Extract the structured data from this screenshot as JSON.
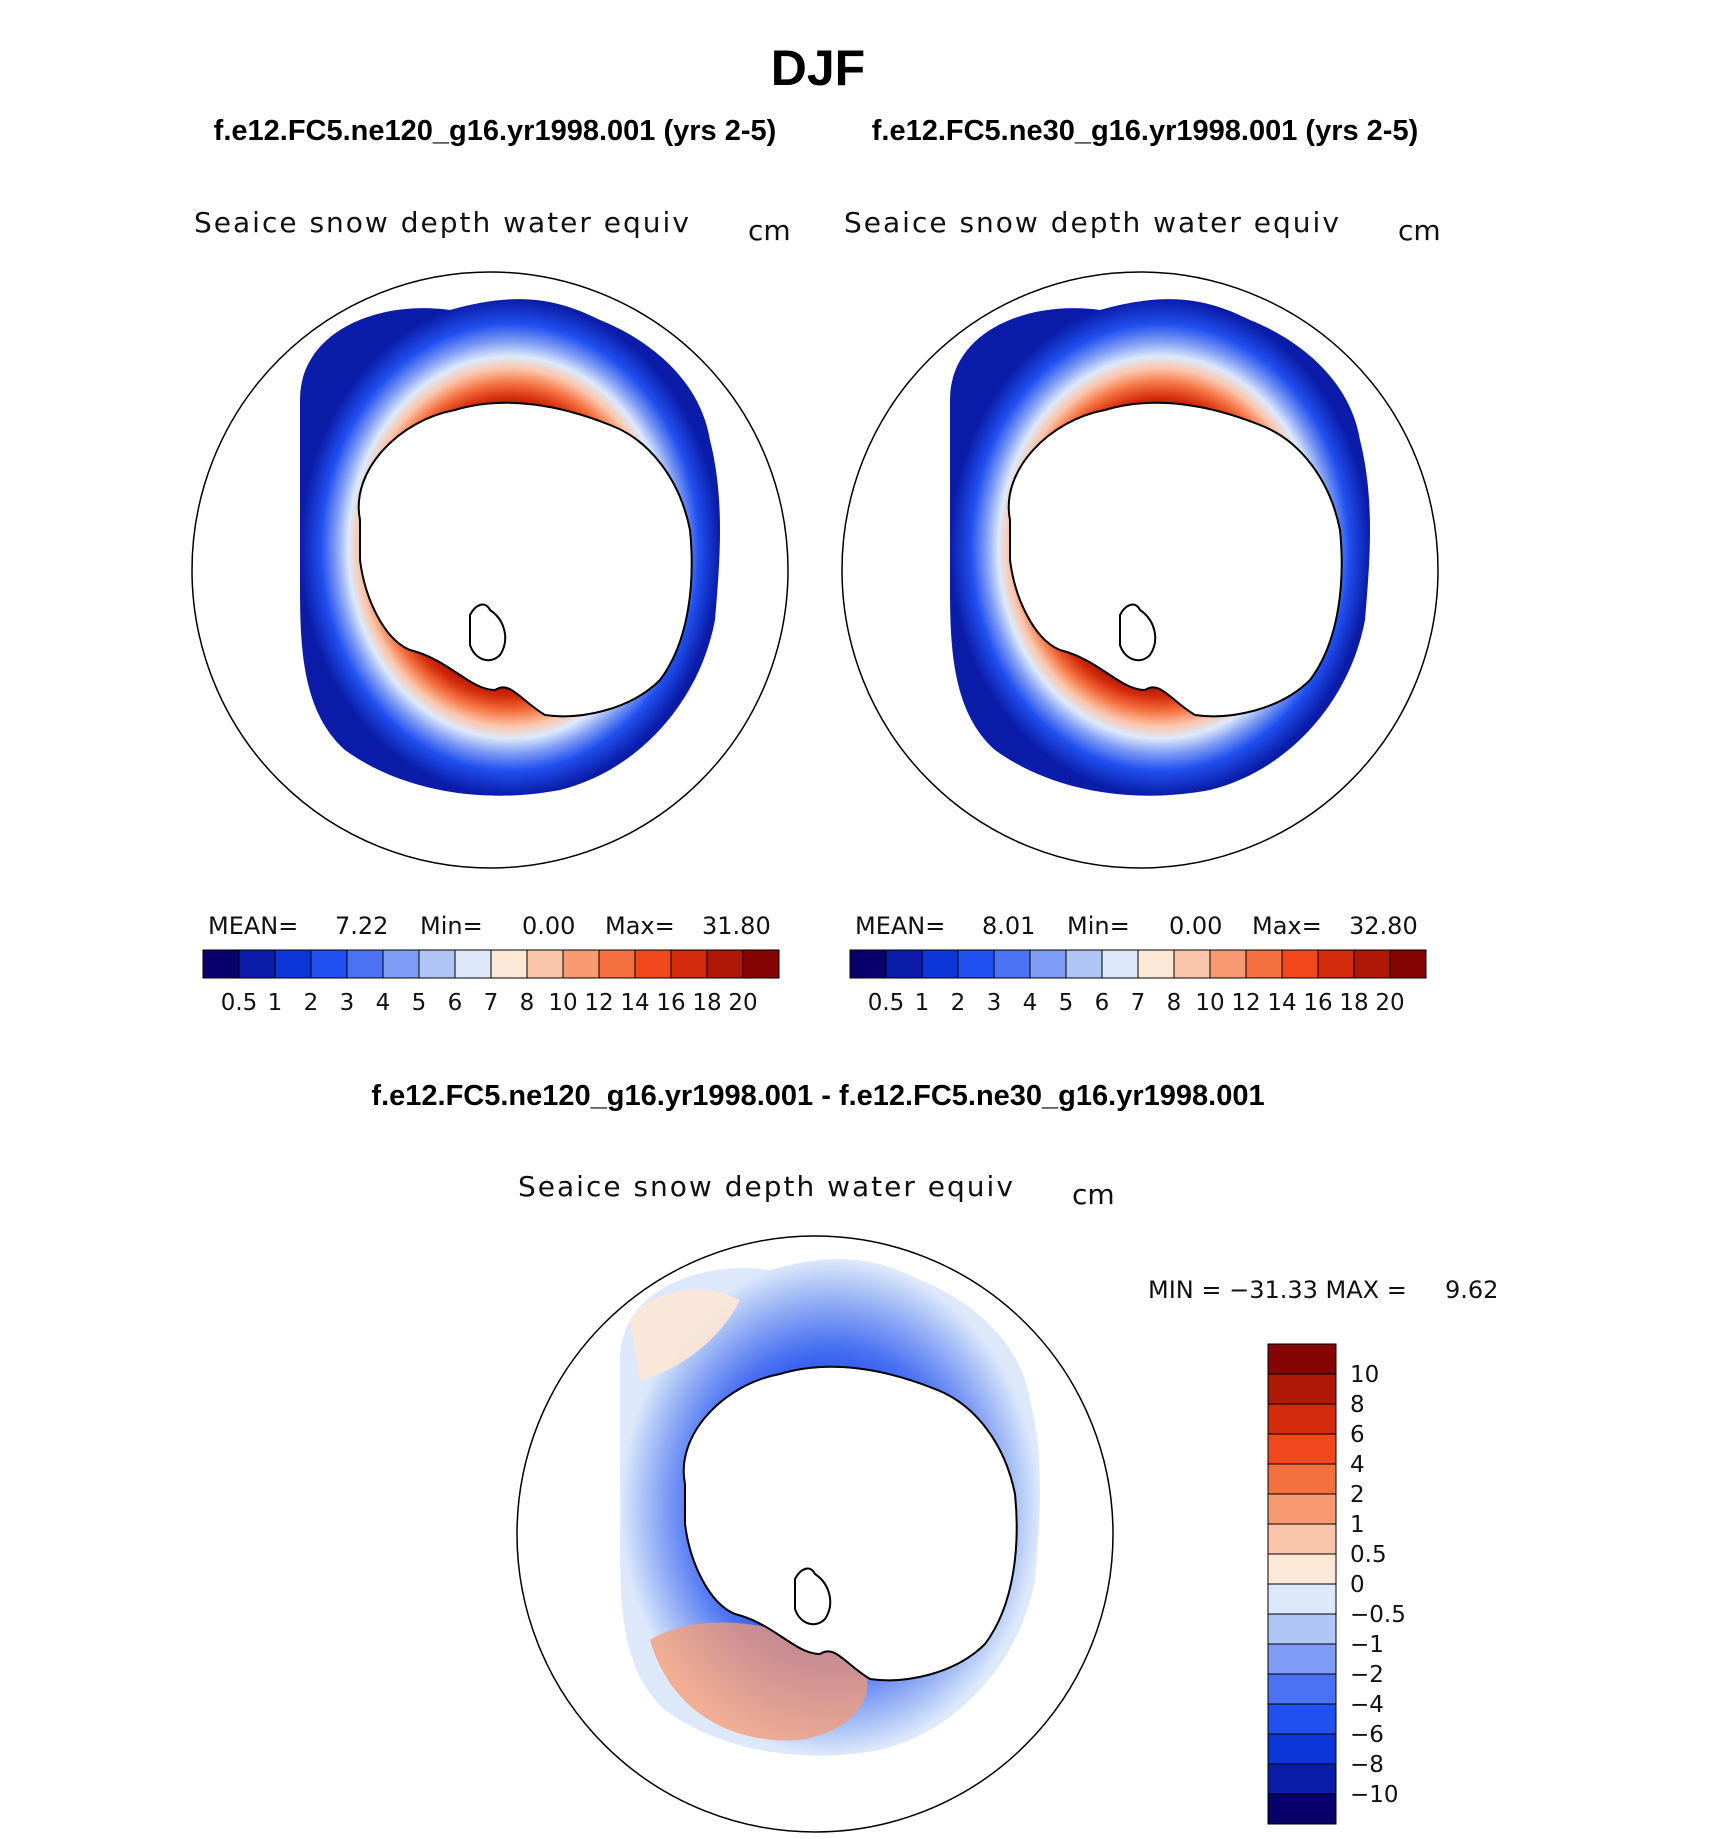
{
  "title": "DJF",
  "panel_left": {
    "case": "f.e12.FC5.ne120_g16.yr1998.001 (yrs 2-5)",
    "variable": "Seaice snow depth water equiv",
    "units": "cm",
    "stats": {
      "mean_label": "MEAN=",
      "mean": "7.22",
      "min_label": "Min=",
      "min": "0.00",
      "max_label": "Max=",
      "max": "31.80"
    }
  },
  "panel_right": {
    "case": "f.e12.FC5.ne30_g16.yr1998.001 (yrs 2-5)",
    "variable": "Seaice snow depth water equiv",
    "units": "cm",
    "stats": {
      "mean_label": "MEAN=",
      "mean": "8.01",
      "min_label": "Min=",
      "min": "0.00",
      "max_label": "Max=",
      "max": "32.80"
    }
  },
  "panel_diff": {
    "case": "f.e12.FC5.ne120_g16.yr1998.001 - f.e12.FC5.ne30_g16.yr1998.001",
    "variable": "Seaice snow depth water equiv",
    "units": "cm",
    "stats_text": "MIN = −31.33 MAX =     9.62"
  },
  "colorbar_abs": {
    "labels": [
      "0.5",
      "1",
      "2",
      "3",
      "4",
      "5",
      "6",
      "7",
      "8",
      "10",
      "12",
      "14",
      "16",
      "18",
      "20"
    ],
    "colors": [
      "#08006b",
      "#0a1ca8",
      "#0d36d8",
      "#2150f0",
      "#4a72f2",
      "#7e9cf4",
      "#b0c6f6",
      "#dde9fb",
      "#fde7d6",
      "#fbc5aa",
      "#f79a72",
      "#f5703f",
      "#f0471c",
      "#d22a0a",
      "#ae1806",
      "#850404"
    ]
  },
  "colorbar_diff": {
    "labels": [
      "10",
      "8",
      "6",
      "4",
      "2",
      "1",
      "0.5",
      "0",
      "−0.5",
      "−1",
      "−2",
      "−4",
      "−6",
      "−8",
      "−10"
    ],
    "colors": [
      "#850404",
      "#ae1806",
      "#d22a0a",
      "#f0471c",
      "#f5703f",
      "#f79a72",
      "#fbc5aa",
      "#fde7d6",
      "#dde9fb",
      "#b0c6f6",
      "#7e9cf4",
      "#4a72f2",
      "#2150f0",
      "#0d36d8",
      "#0a1ca8",
      "#08006b"
    ]
  }
}
